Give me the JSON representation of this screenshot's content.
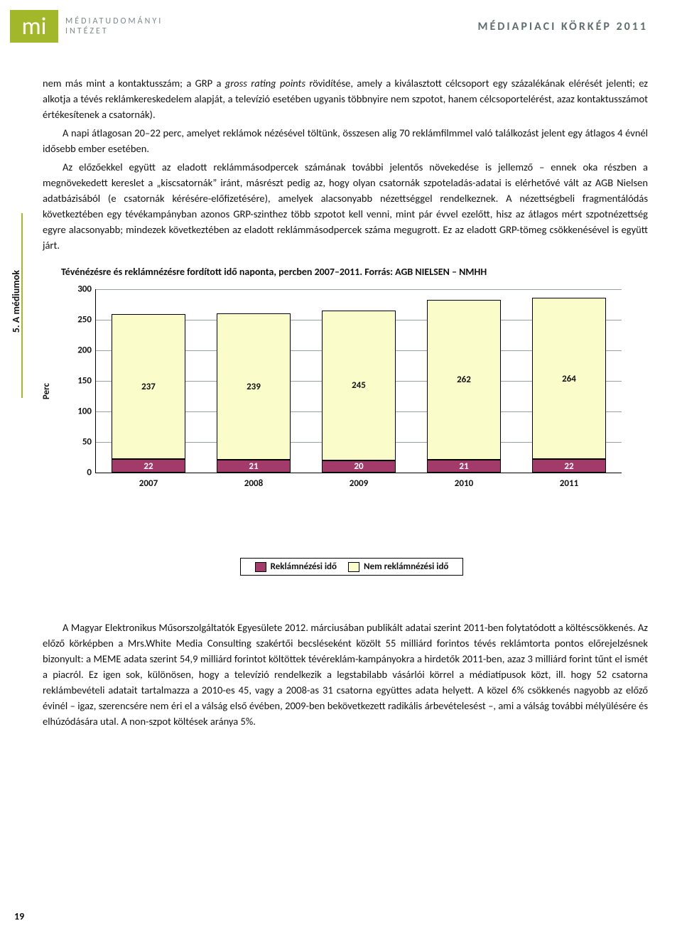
{
  "logo_text": "mi",
  "logo_side_line1": "MÉDIATUDOMÁNYI",
  "logo_side_line2": "INTÉZET",
  "header_right": "MÉDIAPIACI KÖRKÉP 2011",
  "side_tab": "5. A médiumok",
  "paragraphs": {
    "p1": "nem más mint a kontaktusszám; a GRP a ",
    "p1_i": "gross rating points",
    "p1b": " rövidítése, amely a kiválasztott célcsoport egy százalékának elérését jelenti; ez alkotja a tévés reklámkereskedelem alapját, a televízió esetében ugyanis többnyire nem szpotot, hanem célcsoportelérést, azaz kontaktusszámot értékesítenek a csatornák).",
    "p2": "A napi átlagosan 20–22 perc, amelyet reklámok nézésével töltünk, összesen alig 70 reklámfilmmel való találkozást jelent egy átlagos 4 évnél idősebb ember esetében.",
    "p3": "Az előzőekkel együtt az eladott reklámmásodpercek számának további jelentős növekedése is jellemző – ennek oka részben a megnövekedett kereslet a „kiscsatornák” iránt, másrészt pedig az, hogy olyan csatornák szpoteladás-adatai is elérhetővé vált az AGB Nielsen adatbázisából (e csatornák kérésére-előfizetésére), amelyek alacsonyabb nézettséggel rendelkeznek. A nézettségbeli fragmentálódás következtében egy tévékampányban azonos GRP-szinthez több szpotot kell venni, mint pár évvel ezelőtt, hisz az átlagos mért szpotnézettség egyre alacsonyabb; mindezek következtében az eladott reklámmásodpercek száma megugrott. Ez az eladott GRP-tömeg csökkenésével is együtt járt.",
    "p4": "A Magyar Elektronikus Műsorszolgáltatók Egyesülete 2012. márciusában publikált adatai szerint 2011-ben folytatódott a költéscsökkenés. Az előző körképben a Mrs.White Media Consulting szakértői becsléseként közölt 55 milliárd forintos tévés reklámtorta pontos előrejelzésnek bizonyult: a MEME adata szerint 54,9 milliárd forintot költöttek tévéreklám-kampányokra a hirdetők 2011-ben, azaz 3 milliárd forint tűnt el ismét a piacról. Ez igen sok, különösen, hogy a televízió rendelkezik a legstabilabb vásárlói körrel a médiatípusok közt, ill. hogy 52 csatorna reklámbevételi adatait tartalmazza a 2010-es 45, vagy a 2008-as 31 csatorna együttes adata helyett. A közel 6% csökkenés nagyobb az előző évinél – igaz, szerencsére nem éri el a válság első évében, 2009-ben bekövetkezett radikális árbevételesést –, ami a válság további mélyülésére és elhúzódására utal. A non-szpot költések aránya 5%."
  },
  "chart": {
    "title": "Tévénézésre és reklámnézésre fordított idő naponta, percben 2007–2011. Forrás: AGB NIELSEN – NMHH",
    "y_label": "Perc",
    "y_max": 300,
    "y_min": 0,
    "y_step": 50,
    "categories": [
      "2007",
      "2008",
      "2009",
      "2010",
      "2011"
    ],
    "series": [
      {
        "name": "Reklámnézési idő",
        "color": "#a23b6a",
        "values": [
          22,
          21,
          20,
          21,
          22
        ]
      },
      {
        "name": "Nem reklámnézési idő",
        "color": "#fafcc9",
        "values": [
          237,
          239,
          245,
          262,
          264
        ]
      }
    ],
    "grid_color": "#9aa0a0",
    "bar_width_pct": 14,
    "bar_gap_pct": 4,
    "legend_items": [
      "Reklámnézési idő",
      "Nem reklámnézési idő"
    ]
  },
  "page_number": "19"
}
